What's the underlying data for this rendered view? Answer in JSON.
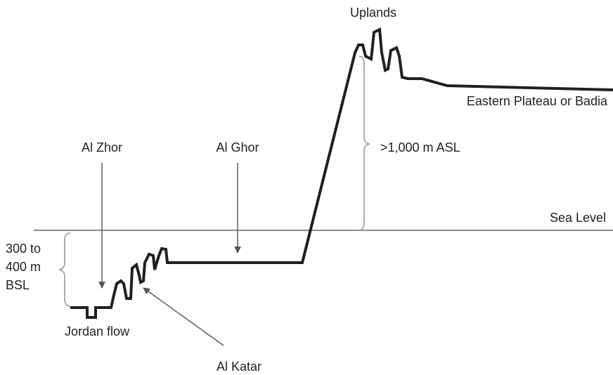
{
  "title": "Uplands",
  "regions": {
    "plateau": "Eastern Plateau or Badia",
    "zhor": "Al Zhor",
    "ghor": "Al Ghor",
    "katar": "Al Katar",
    "jordan": "Jordan flow",
    "sea_level": "Sea Level"
  },
  "elevations": {
    "above": ">1,000 m ASL",
    "below": [
      "300 to",
      "400 m",
      "BSL"
    ]
  }
}
